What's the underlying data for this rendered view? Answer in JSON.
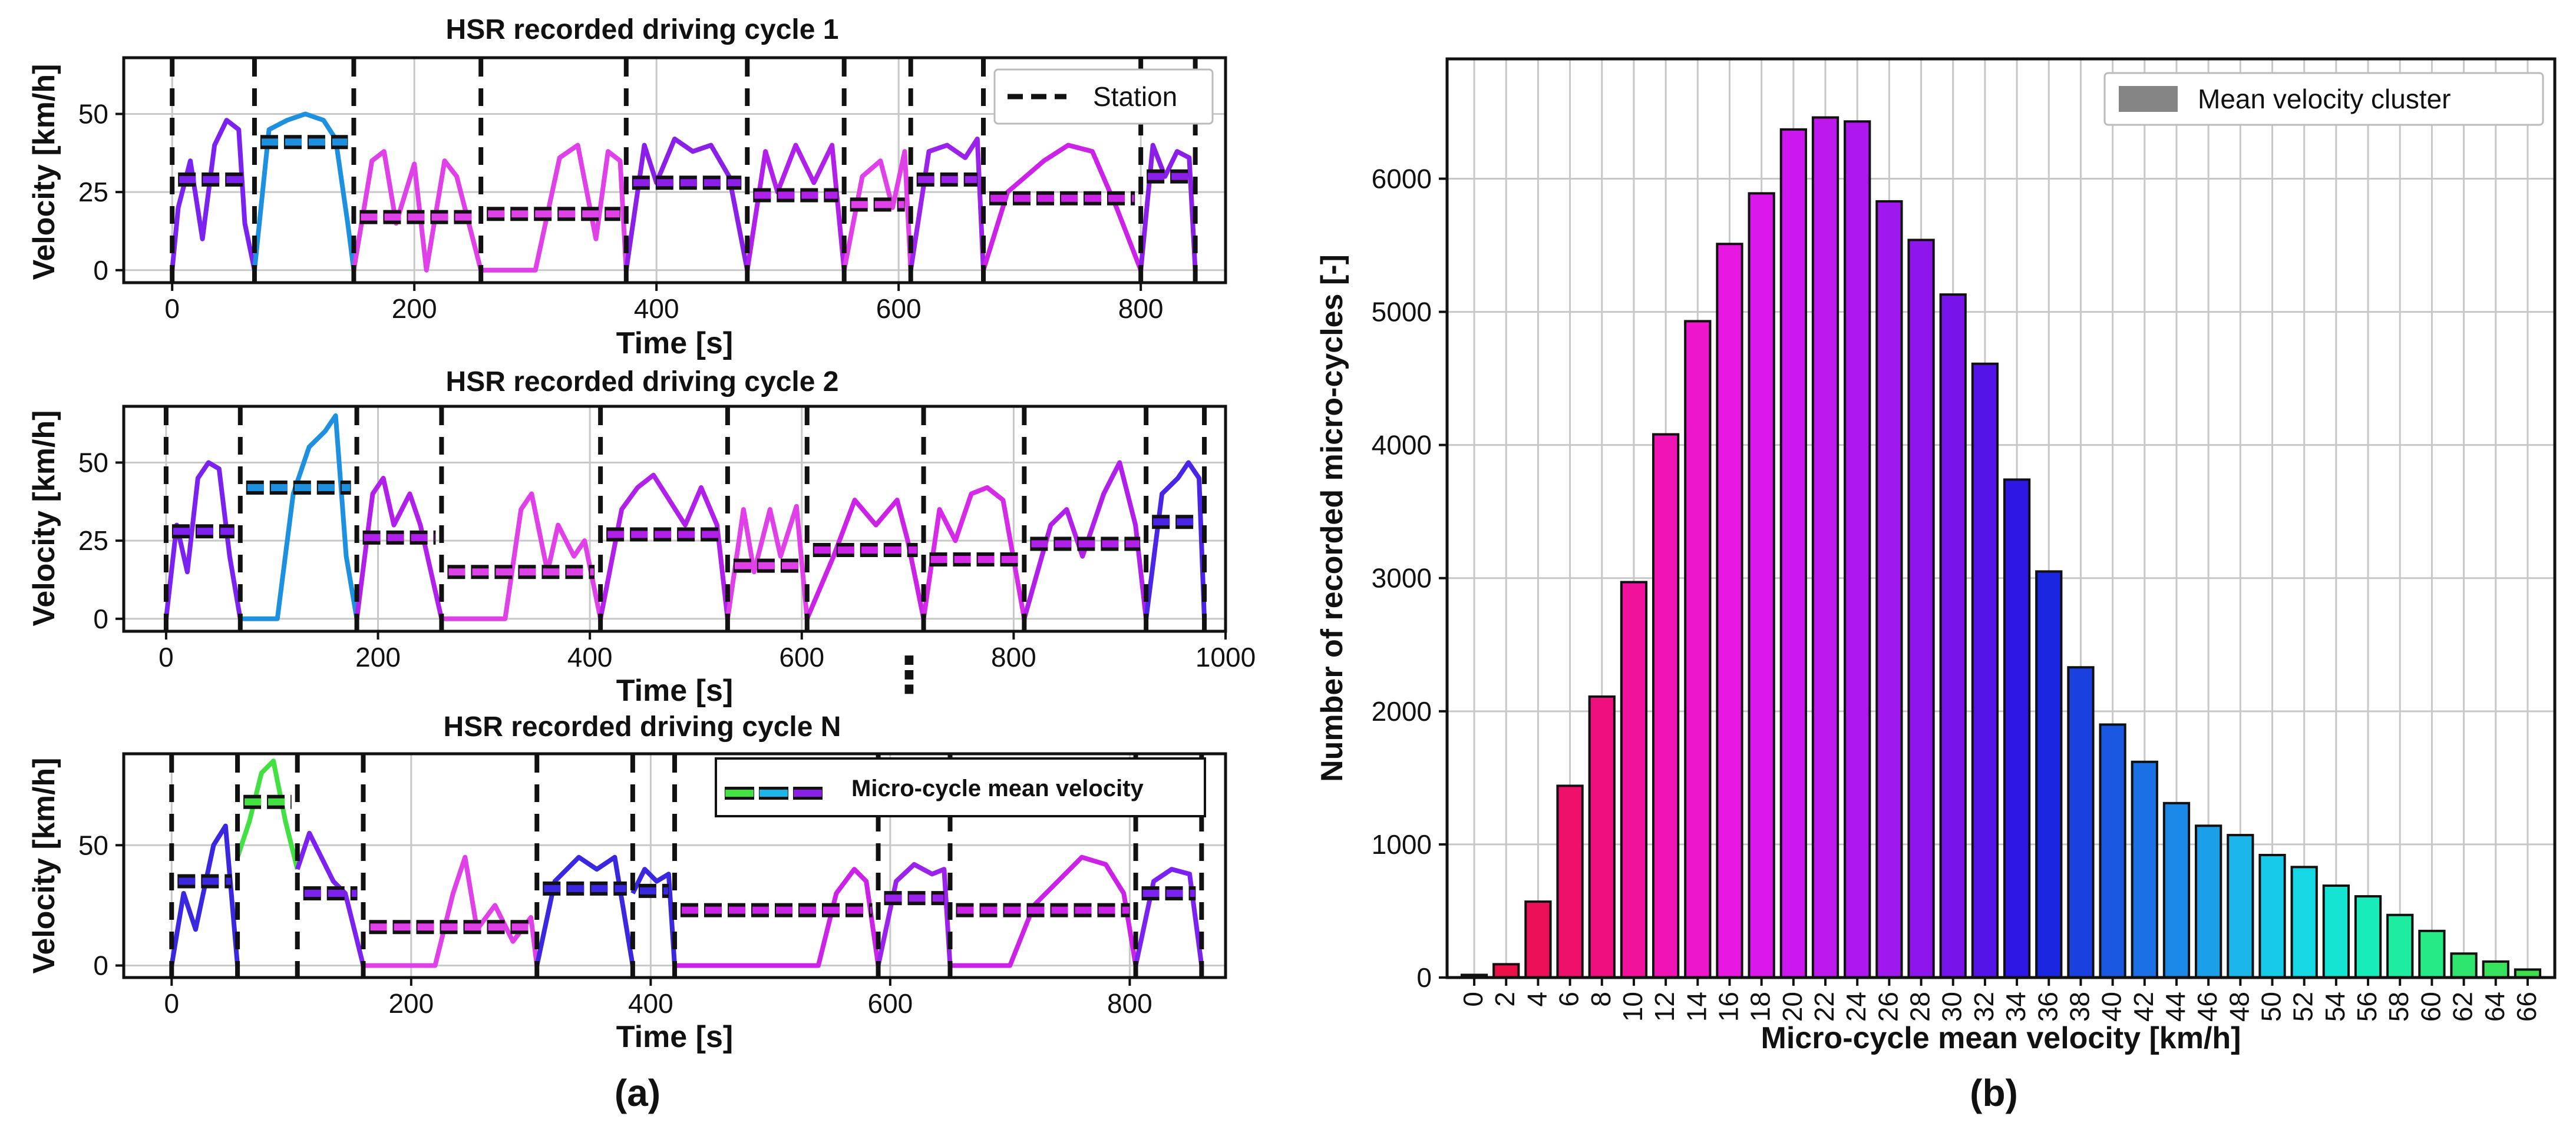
{
  "panel_labels": {
    "a": "(a)",
    "b": "(b)"
  },
  "continuation_marker": "⋮",
  "chart_data": [
    {
      "type": "line",
      "title": "HSR recorded driving cycle 1",
      "xlabel": "Time [s]",
      "ylabel": "Velocity [km/h]",
      "xlim": [
        -40,
        870
      ],
      "ylim": [
        -4,
        68
      ],
      "xticks": [
        0,
        200,
        400,
        600,
        800
      ],
      "yticks": [
        0,
        25,
        50
      ],
      "grid": true,
      "legend": {
        "position": "top-right",
        "entries": [
          {
            "label": "Station",
            "style": "black dashed"
          }
        ]
      },
      "stations": [
        0,
        68,
        150,
        255,
        375,
        475,
        555,
        610,
        670,
        800,
        845
      ],
      "segments": [
        {
          "t": [
            0,
            5,
            15,
            25,
            35,
            45,
            55,
            60,
            68
          ],
          "v": [
            0,
            20,
            35,
            10,
            40,
            48,
            45,
            15,
            0
          ],
          "mean": 29,
          "color": "#7b22f0"
        },
        {
          "t": [
            68,
            80,
            95,
            110,
            125,
            135,
            145,
            150
          ],
          "v": [
            0,
            45,
            48,
            50,
            48,
            42,
            15,
            0
          ],
          "mean": 41,
          "color": "#1e90e0"
        },
        {
          "t": [
            150,
            165,
            175,
            185,
            200,
            210,
            225,
            235,
            245,
            255
          ],
          "v": [
            0,
            35,
            38,
            15,
            34,
            0,
            35,
            30,
            15,
            0
          ],
          "mean": 17,
          "color": "#e040e8"
        },
        {
          "t": [
            255,
            300,
            320,
            335,
            350,
            360,
            370,
            375
          ],
          "v": [
            0,
            0,
            36,
            40,
            10,
            38,
            35,
            0
          ],
          "mean": 18,
          "color": "#e040e8"
        },
        {
          "t": [
            375,
            390,
            400,
            415,
            430,
            445,
            460,
            475
          ],
          "v": [
            0,
            40,
            28,
            42,
            38,
            40,
            30,
            0
          ],
          "mean": 28,
          "color": "#8a20e8"
        },
        {
          "t": [
            475,
            490,
            500,
            515,
            530,
            545,
            555
          ],
          "v": [
            0,
            38,
            25,
            40,
            28,
            40,
            0
          ],
          "mean": 24,
          "color": "#b020ea"
        },
        {
          "t": [
            555,
            570,
            585,
            595,
            605,
            610
          ],
          "v": [
            0,
            30,
            35,
            20,
            38,
            0
          ],
          "mean": 21,
          "color": "#e040e8"
        },
        {
          "t": [
            610,
            625,
            640,
            655,
            665,
            670
          ],
          "v": [
            0,
            38,
            40,
            36,
            42,
            0
          ],
          "mean": 29,
          "color": "#9a22ea"
        },
        {
          "t": [
            670,
            690,
            705,
            720,
            740,
            760,
            780,
            800
          ],
          "v": [
            0,
            25,
            30,
            35,
            40,
            38,
            20,
            0
          ],
          "mean": 23,
          "color": "#cc22e8"
        },
        {
          "t": [
            800,
            810,
            820,
            830,
            840,
            845
          ],
          "v": [
            0,
            40,
            30,
            38,
            36,
            0
          ],
          "mean": 30,
          "color": "#8a20e8"
        }
      ]
    },
    {
      "type": "line",
      "title": "HSR recorded driving cycle 2",
      "xlabel": "Time [s]",
      "ylabel": "Velocity [km/h]",
      "xlim": [
        -40,
        1000
      ],
      "ylim": [
        -4,
        68
      ],
      "xticks": [
        0,
        200,
        400,
        600,
        800,
        1000
      ],
      "yticks": [
        0,
        25,
        50
      ],
      "grid": true,
      "stations": [
        0,
        70,
        180,
        260,
        410,
        530,
        605,
        715,
        810,
        925,
        980
      ],
      "segments": [
        {
          "t": [
            0,
            10,
            20,
            30,
            40,
            50,
            60,
            70
          ],
          "v": [
            0,
            30,
            15,
            45,
            50,
            48,
            20,
            0
          ],
          "mean": 28,
          "color": "#7b22f0"
        },
        {
          "t": [
            70,
            105,
            120,
            135,
            150,
            160,
            170,
            180
          ],
          "v": [
            0,
            0,
            40,
            55,
            60,
            65,
            20,
            0
          ],
          "mean": 42,
          "color": "#1e90e0"
        },
        {
          "t": [
            180,
            195,
            205,
            215,
            230,
            240,
            250,
            260
          ],
          "v": [
            0,
            40,
            45,
            30,
            40,
            30,
            15,
            0
          ],
          "mean": 26,
          "color": "#b020ea"
        },
        {
          "t": [
            260,
            320,
            335,
            345,
            360,
            370,
            385,
            395,
            410
          ],
          "v": [
            0,
            0,
            35,
            40,
            15,
            30,
            20,
            25,
            0
          ],
          "mean": 15,
          "color": "#e040e8"
        },
        {
          "t": [
            410,
            430,
            445,
            460,
            475,
            490,
            505,
            520,
            530
          ],
          "v": [
            0,
            35,
            42,
            46,
            38,
            30,
            42,
            30,
            0
          ],
          "mean": 27,
          "color": "#b020ea"
        },
        {
          "t": [
            530,
            545,
            555,
            570,
            580,
            595,
            605
          ],
          "v": [
            0,
            35,
            15,
            35,
            20,
            36,
            0
          ],
          "mean": 17,
          "color": "#e040e8"
        },
        {
          "t": [
            605,
            630,
            650,
            670,
            690,
            700,
            715
          ],
          "v": [
            0,
            20,
            38,
            30,
            38,
            25,
            0
          ],
          "mean": 22,
          "color": "#cc22e8"
        },
        {
          "t": [
            715,
            730,
            745,
            760,
            775,
            790,
            810
          ],
          "v": [
            0,
            35,
            25,
            40,
            42,
            38,
            0
          ],
          "mean": 19,
          "color": "#d62ae8"
        },
        {
          "t": [
            810,
            835,
            850,
            865,
            885,
            900,
            915,
            925
          ],
          "v": [
            0,
            30,
            35,
            20,
            40,
            50,
            30,
            0
          ],
          "mean": 24,
          "color": "#b020ea"
        },
        {
          "t": [
            925,
            940,
            955,
            965,
            975,
            980
          ],
          "v": [
            0,
            40,
            45,
            50,
            45,
            0
          ],
          "mean": 31,
          "color": "#4a25e8"
        }
      ]
    },
    {
      "type": "line",
      "title": "HSR recorded driving cycle N",
      "xlabel": "Time [s]",
      "ylabel": "Velocity [km/h]",
      "xlim": [
        -40,
        880
      ],
      "ylim": [
        -5,
        88
      ],
      "xticks": [
        0,
        200,
        400,
        600,
        800
      ],
      "yticks": [
        0,
        50
      ],
      "grid": true,
      "legend": {
        "position": "top-right",
        "entries": [
          {
            "label": "Micro-cycle mean velocity",
            "style": "colored dashes"
          }
        ]
      },
      "stations": [
        0,
        55,
        105,
        160,
        305,
        385,
        420,
        590,
        650,
        805,
        860
      ],
      "segments": [
        {
          "t": [
            0,
            10,
            20,
            35,
            45,
            55
          ],
          "v": [
            0,
            30,
            15,
            50,
            58,
            0
          ],
          "mean": 35,
          "color": "#3a28e0"
        },
        {
          "t": [
            55,
            65,
            75,
            85,
            95,
            105
          ],
          "v": [
            45,
            60,
            80,
            85,
            60,
            40
          ],
          "mean": 68,
          "color": "#42e040"
        },
        {
          "t": [
            105,
            115,
            125,
            135,
            145,
            155,
            160
          ],
          "v": [
            40,
            55,
            45,
            35,
            30,
            10,
            0
          ],
          "mean": 30,
          "color": "#7b22f0"
        },
        {
          "t": [
            160,
            220,
            235,
            245,
            255,
            270,
            285,
            300,
            305
          ],
          "v": [
            0,
            0,
            30,
            45,
            15,
            25,
            10,
            20,
            0
          ],
          "mean": 16,
          "color": "#e040e8"
        },
        {
          "t": [
            305,
            320,
            340,
            355,
            370,
            385
          ],
          "v": [
            0,
            35,
            45,
            40,
            45,
            0
          ],
          "mean": 32,
          "color": "#3a28e0"
        },
        {
          "t": [
            385,
            395,
            405,
            415,
            420
          ],
          "v": [
            30,
            40,
            35,
            38,
            0
          ],
          "mean": 31,
          "color": "#3a28e0"
        },
        {
          "t": [
            420,
            540,
            555,
            570,
            580,
            590
          ],
          "v": [
            0,
            0,
            30,
            40,
            35,
            0
          ],
          "mean": 23,
          "color": "#cc22e8"
        },
        {
          "t": [
            590,
            605,
            620,
            635,
            645,
            650
          ],
          "v": [
            0,
            35,
            42,
            38,
            40,
            0
          ],
          "mean": 28,
          "color": "#9a22ea"
        },
        {
          "t": [
            650,
            700,
            720,
            740,
            760,
            780,
            795,
            805
          ],
          "v": [
            0,
            0,
            25,
            35,
            45,
            42,
            30,
            0
          ],
          "mean": 23,
          "color": "#cc22e8"
        },
        {
          "t": [
            805,
            820,
            835,
            850,
            860
          ],
          "v": [
            0,
            35,
            40,
            38,
            0
          ],
          "mean": 30,
          "color": "#7b22f0"
        }
      ]
    },
    {
      "type": "bar",
      "xlabel": "Micro-cycle mean velocity [km/h]",
      "ylabel": "Number of recorded micro-cycles [-]",
      "ylim": [
        0,
        6900
      ],
      "yticks": [
        0,
        1000,
        2000,
        3000,
        4000,
        5000,
        6000
      ],
      "grid": true,
      "legend": {
        "position": "top-right",
        "entries": [
          {
            "label": "Mean velocity cluster",
            "style": "gray patch"
          }
        ]
      },
      "categories": [
        "0",
        "2",
        "4",
        "6",
        "8",
        "10",
        "12",
        "14",
        "16",
        "18",
        "20",
        "22",
        "24",
        "26",
        "28",
        "30",
        "32",
        "34",
        "36",
        "38",
        "40",
        "42",
        "44",
        "46",
        "48",
        "50",
        "52",
        "54",
        "56",
        "58",
        "60",
        "62",
        "64",
        "66"
      ],
      "values": [
        20,
        100,
        570,
        1440,
        2110,
        2970,
        4080,
        4930,
        5510,
        5890,
        6370,
        6460,
        6430,
        5830,
        5540,
        5130,
        4610,
        3740,
        3050,
        2330,
        1900,
        1620,
        1310,
        1140,
        1070,
        920,
        830,
        690,
        610,
        470,
        350,
        180,
        120,
        60
      ],
      "colors": [
        "#e8103a",
        "#ea1048",
        "#ec1058",
        "#ee106a",
        "#ef1080",
        "#f0129a",
        "#f014b4",
        "#ee16cc",
        "#e818e2",
        "#da18ec",
        "#cc18ee",
        "#bd18ee",
        "#ae18ee",
        "#9f18ee",
        "#8e16ec",
        "#7614ea",
        "#5414e8",
        "#2e16e4",
        "#1a26e0",
        "#1a40e0",
        "#1a58e2",
        "#1a70e4",
        "#1a88e6",
        "#1aa0e8",
        "#1ab6ea",
        "#18caea",
        "#16d8e4",
        "#16e4d2",
        "#18ecba",
        "#1eeca0",
        "#26ea86",
        "#2ee66e",
        "#36e25c",
        "#3ede4e"
      ]
    }
  ]
}
